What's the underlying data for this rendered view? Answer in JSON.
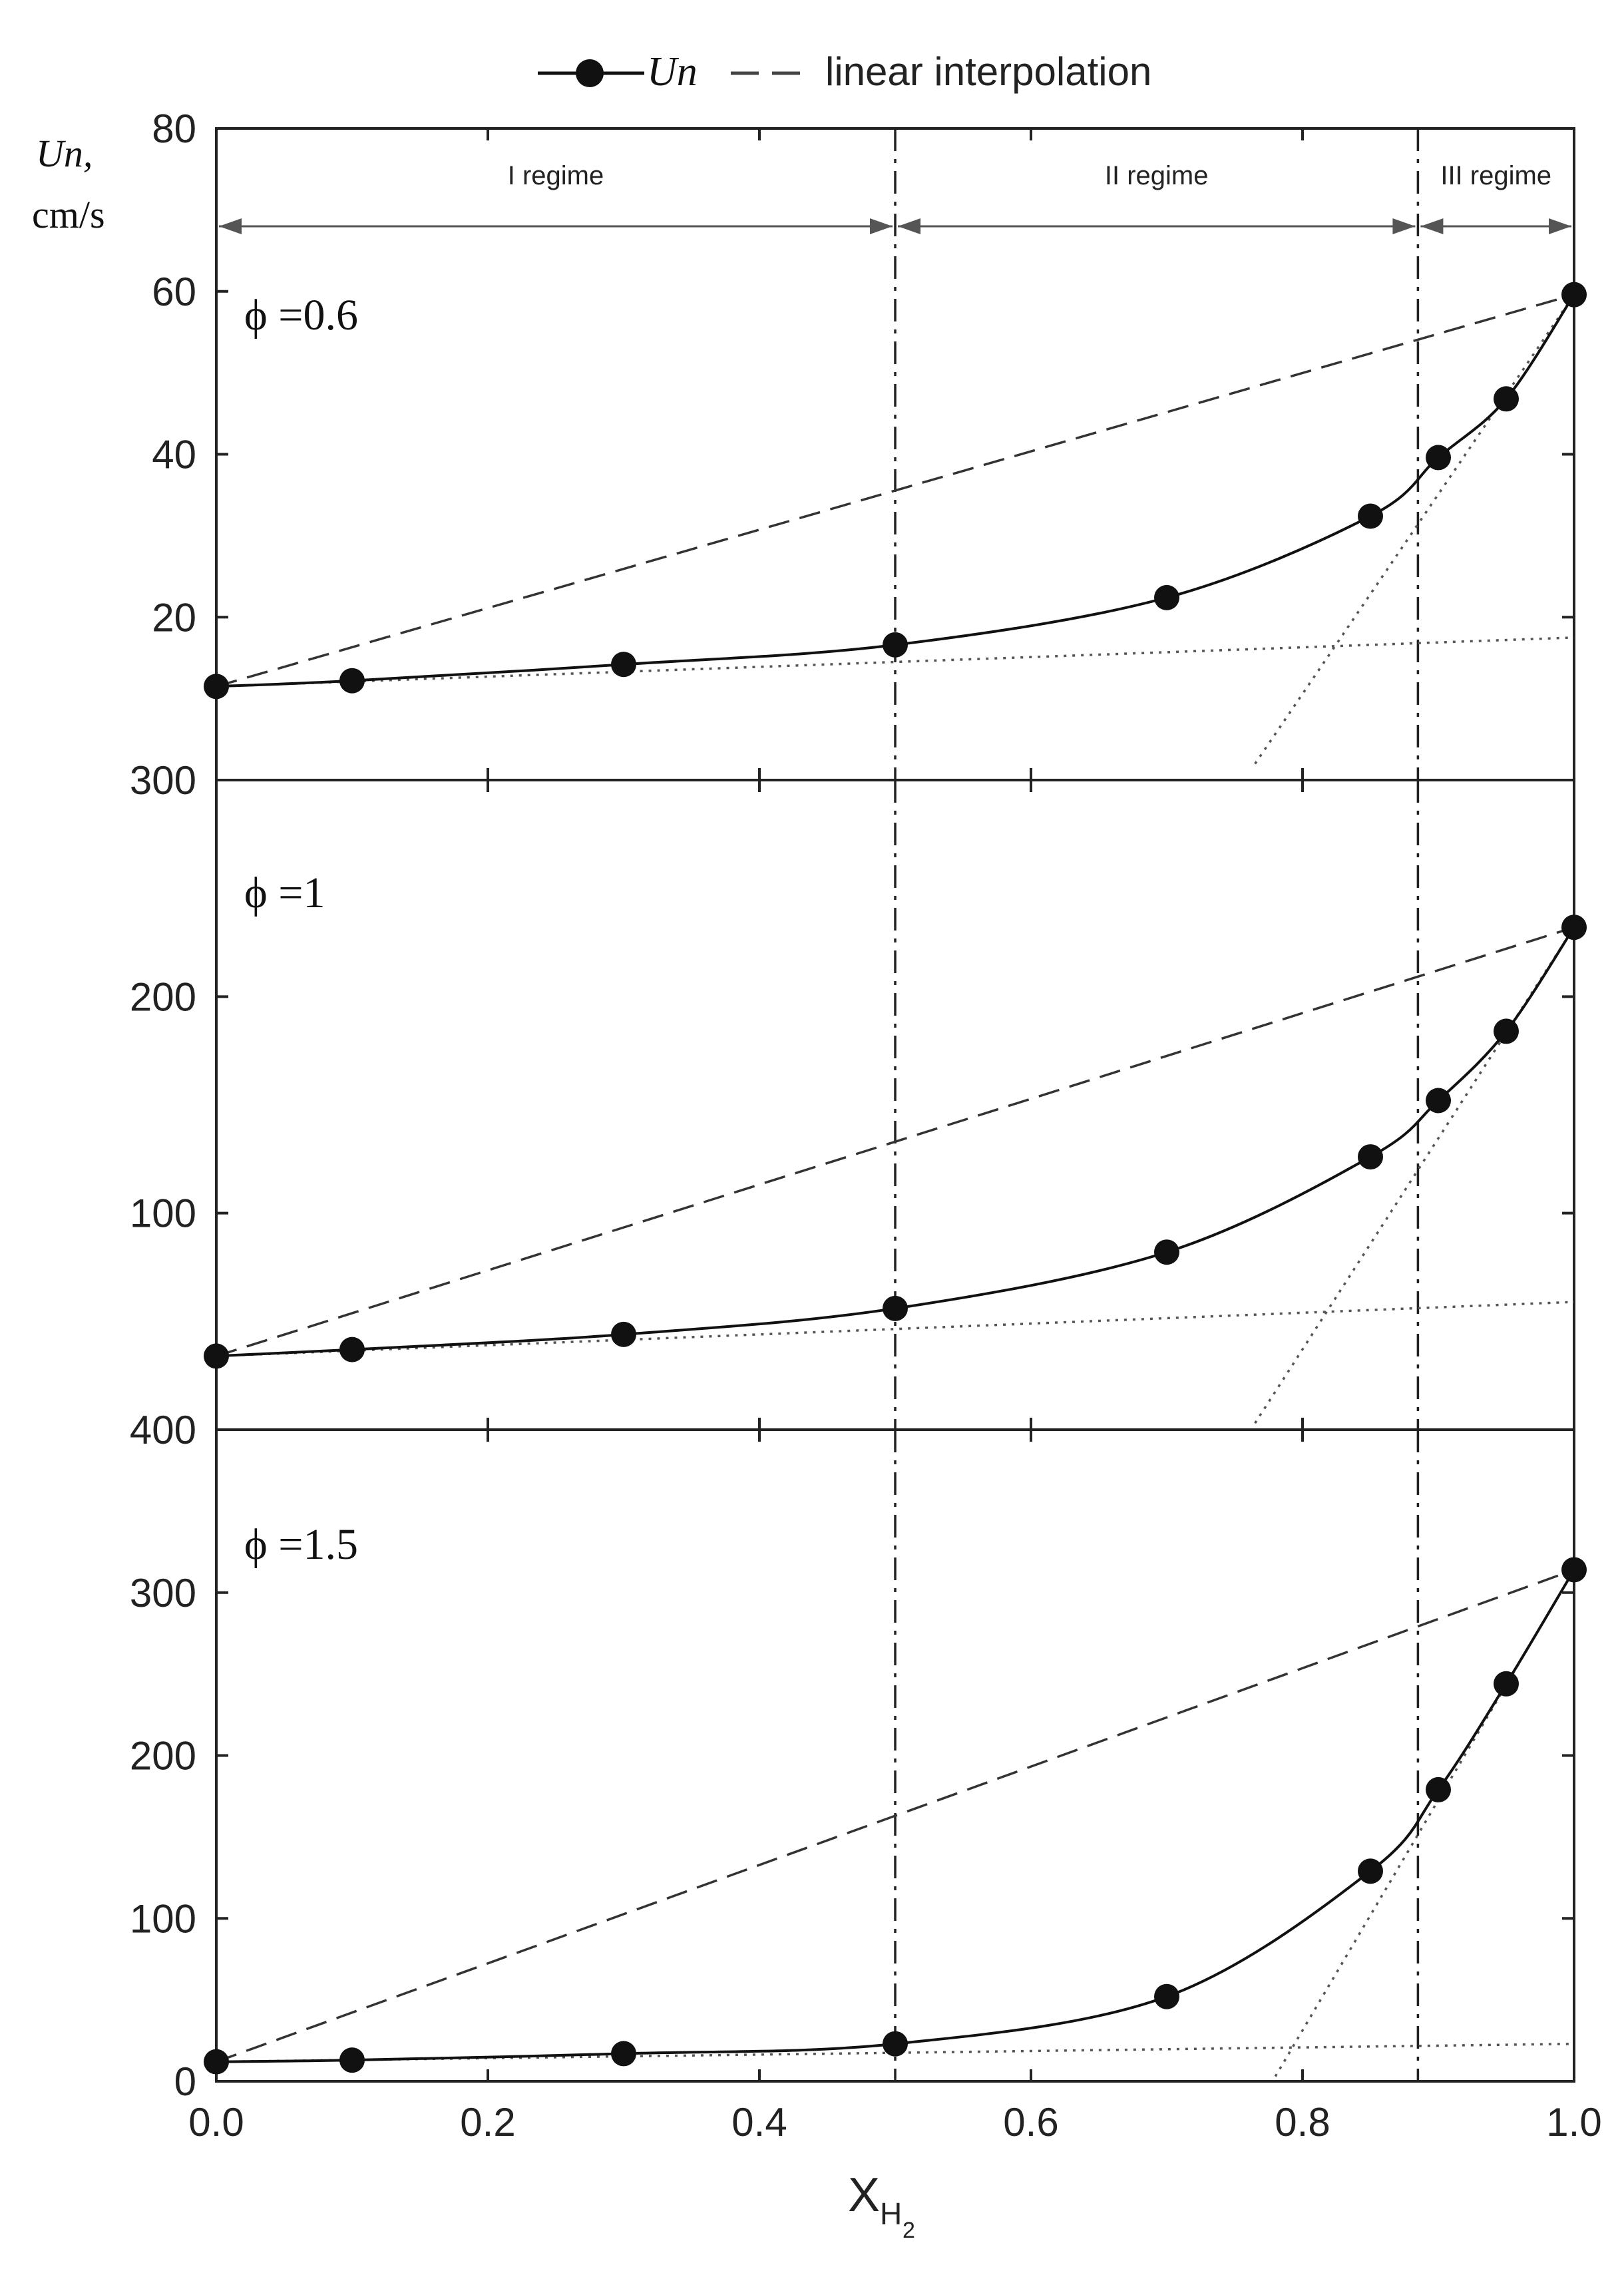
{
  "legend": {
    "series_label": "Un",
    "interp_label": "linear interpolation",
    "placement": "top-center"
  },
  "y_axis_title": {
    "line1": "Un,",
    "line2": "cm/s"
  },
  "x_axis_title": {
    "main": "X",
    "subscript": "H",
    "subsub": "2"
  },
  "regimes": {
    "labels": [
      "I regime",
      "II regime",
      "III regime"
    ],
    "boundaries": [
      0.5,
      0.885
    ]
  },
  "chart_data": [
    {
      "type": "line",
      "panel_label": "ϕ =0.6",
      "xlim": [
        0,
        1.0
      ],
      "ylim": [
        0,
        80
      ],
      "yticks": [
        0,
        20,
        40,
        60,
        80
      ],
      "ytick_labels": [
        "20",
        "40",
        "60",
        "80"
      ],
      "x": [
        0.0,
        0.1,
        0.3,
        0.5,
        0.7,
        0.85,
        0.9,
        0.95,
        1.0
      ],
      "series": [
        {
          "name": "Un",
          "values": [
            11.5,
            12.2,
            14.2,
            16.6,
            22.4,
            32.4,
            39.6,
            46.8,
            59.6
          ]
        }
      ],
      "interpolation": {
        "x": [
          0.0,
          1.0
        ],
        "y": [
          11.5,
          59.6
        ]
      },
      "dotted_lines": [
        {
          "x": [
            0.0,
            1.0
          ],
          "y": [
            11.5,
            17.5
          ]
        },
        {
          "x": [
            0.765,
            1.0
          ],
          "y": [
            2,
            59.6
          ]
        }
      ]
    },
    {
      "type": "line",
      "panel_label": "ϕ =1",
      "xlim": [
        0,
        1.0
      ],
      "ylim": [
        0,
        300
      ],
      "yticks": [
        0,
        100,
        200,
        300
      ],
      "ytick_labels": [
        "100",
        "200",
        "300"
      ],
      "x": [
        0.0,
        0.1,
        0.3,
        0.5,
        0.7,
        0.85,
        0.9,
        0.95,
        1.0
      ],
      "series": [
        {
          "name": "Un",
          "values": [
            34,
            37,
            44,
            56,
            82,
            126,
            152,
            184,
            232
          ]
        }
      ],
      "interpolation": {
        "x": [
          0.0,
          1.0
        ],
        "y": [
          34,
          232
        ]
      },
      "dotted_lines": [
        {
          "x": [
            0.0,
            1.0
          ],
          "y": [
            34,
            59
          ]
        },
        {
          "x": [
            0.765,
            1.0
          ],
          "y": [
            3,
            232
          ]
        }
      ]
    },
    {
      "type": "line",
      "panel_label": "ϕ =1.5",
      "xlim": [
        0,
        1.0
      ],
      "ylim": [
        0,
        400
      ],
      "yticks": [
        0,
        100,
        200,
        300,
        400
      ],
      "ytick_labels": [
        "0",
        "100",
        "200",
        "300",
        "400"
      ],
      "xticks": [
        0.0,
        0.2,
        0.4,
        0.6,
        0.8,
        1.0
      ],
      "xtick_labels": [
        "0.0",
        "0.2",
        "0.4",
        "0.6",
        "0.8",
        "1.0"
      ],
      "x": [
        0.0,
        0.1,
        0.3,
        0.5,
        0.7,
        0.85,
        0.9,
        0.95,
        1.0
      ],
      "series": [
        {
          "name": "Un",
          "values": [
            12,
            13,
            17,
            23,
            52,
            129,
            179,
            244,
            314
          ]
        }
      ],
      "interpolation": {
        "x": [
          0.0,
          1.0
        ],
        "y": [
          12,
          314
        ]
      },
      "dotted_lines": [
        {
          "x": [
            0.0,
            1.0
          ],
          "y": [
            12,
            23
          ]
        },
        {
          "x": [
            0.78,
            1.0
          ],
          "y": [
            3,
            314
          ]
        }
      ]
    }
  ]
}
